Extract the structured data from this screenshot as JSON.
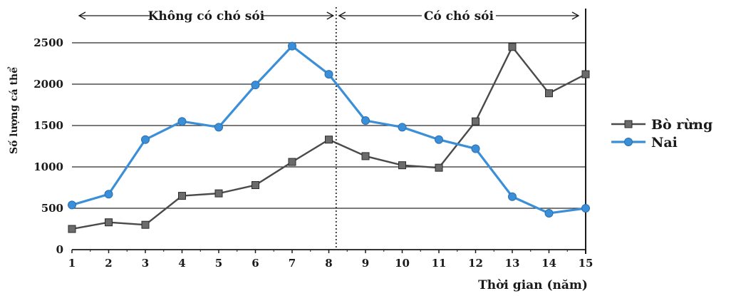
{
  "chart_data": {
    "type": "line",
    "xlabel": "Thời gian (năm)",
    "ylabel": "Số lượng cá thể",
    "x": [
      1,
      2,
      3,
      4,
      5,
      6,
      7,
      8,
      9,
      10,
      11,
      12,
      13,
      14,
      15
    ],
    "xlim": [
      1,
      15
    ],
    "ylim": [
      0,
      2500
    ],
    "yticks": [
      0,
      500,
      1000,
      1500,
      2000,
      2500
    ],
    "grid": "horizontal",
    "legend_position": "right",
    "phases": [
      {
        "label": "Không có chó sói",
        "from": 1,
        "to": 8.2
      },
      {
        "label": "Có chó sói",
        "from": 8.2,
        "to": 15
      }
    ],
    "divider_x": 8.2,
    "series": [
      {
        "name": "Bò rừng",
        "marker": "square",
        "color": "#4a4a4a",
        "values": [
          250,
          330,
          300,
          650,
          680,
          780,
          1060,
          1330,
          1130,
          1020,
          990,
          1550,
          2450,
          1890,
          2120
        ]
      },
      {
        "name": "Nai",
        "marker": "circle",
        "color": "#3a8fd8",
        "values": [
          540,
          670,
          1330,
          1550,
          1480,
          1990,
          2460,
          2120,
          1560,
          1480,
          1330,
          1220,
          640,
          440,
          500
        ]
      }
    ]
  }
}
